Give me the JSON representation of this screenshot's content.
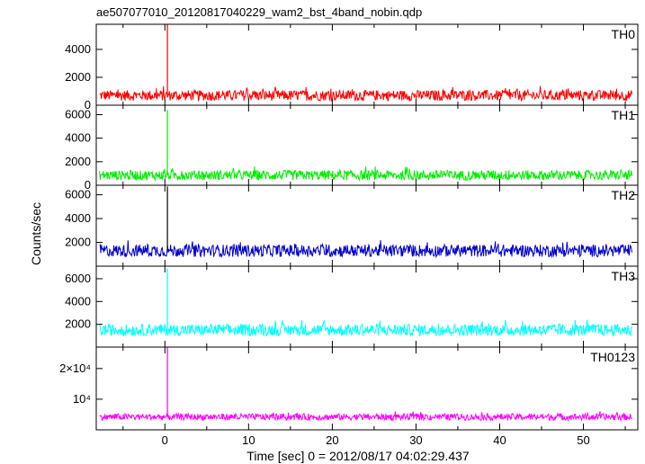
{
  "chart_data": {
    "type": "line",
    "title": "ae507077010_20120817040229_wam2_bst_4band_nobin.qdp",
    "xlabel": "Time [sec] 0 = 2012/08/17 04:02:29.437",
    "ylabel": "Counts/sec",
    "xlim": [
      -8.2,
      56.5
    ],
    "x_ticks": [
      0,
      10,
      20,
      30,
      40,
      50
    ],
    "x_tick_labels": [
      "0",
      "10",
      "20",
      "30",
      "40",
      "50"
    ],
    "burst_time": 0.3,
    "time_range": [
      -7.8,
      55.8
    ],
    "grid": false,
    "panels": [
      {
        "name": "TH0",
        "color": "#ff0000",
        "ylim": [
          0,
          5800
        ],
        "y_ticks": [
          0,
          2000,
          4000
        ],
        "y_tick_labels": [
          "0",
          "2000",
          "4000"
        ],
        "baseline": 700,
        "noise": 380,
        "peak": 5800
      },
      {
        "name": "TH1",
        "color": "#00ee00",
        "ylim": [
          0,
          6800
        ],
        "y_ticks": [
          0,
          2000,
          4000,
          6000
        ],
        "y_tick_labels": [
          "0",
          "2000",
          "4000",
          "6000"
        ],
        "baseline": 850,
        "noise": 420,
        "peak": 6400
      },
      {
        "name": "TH2",
        "color": "#0000cc",
        "ylim": [
          0,
          6800
        ],
        "y_ticks": [
          2000,
          4000,
          6000
        ],
        "y_tick_labels": [
          "2000",
          "4000",
          "6000"
        ],
        "baseline": 1300,
        "noise": 520,
        "peak": 6700,
        "peak_color": "#000000"
      },
      {
        "name": "TH3",
        "color": "#00ffff",
        "ylim": [
          0,
          7100
        ],
        "y_ticks": [
          2000,
          4000,
          6000
        ],
        "y_tick_labels": [
          "2000",
          "4000",
          "6000"
        ],
        "baseline": 1500,
        "noise": 520,
        "peak": 6900
      },
      {
        "name": "TH0123",
        "color": "#ff00ff",
        "ylim": [
          0,
          27000
        ],
        "y_ticks": [
          10000,
          20000
        ],
        "y_tick_labels": [
          "10⁴",
          "2×10⁴"
        ],
        "baseline": 4200,
        "noise": 1100,
        "peak": 27000
      }
    ]
  }
}
